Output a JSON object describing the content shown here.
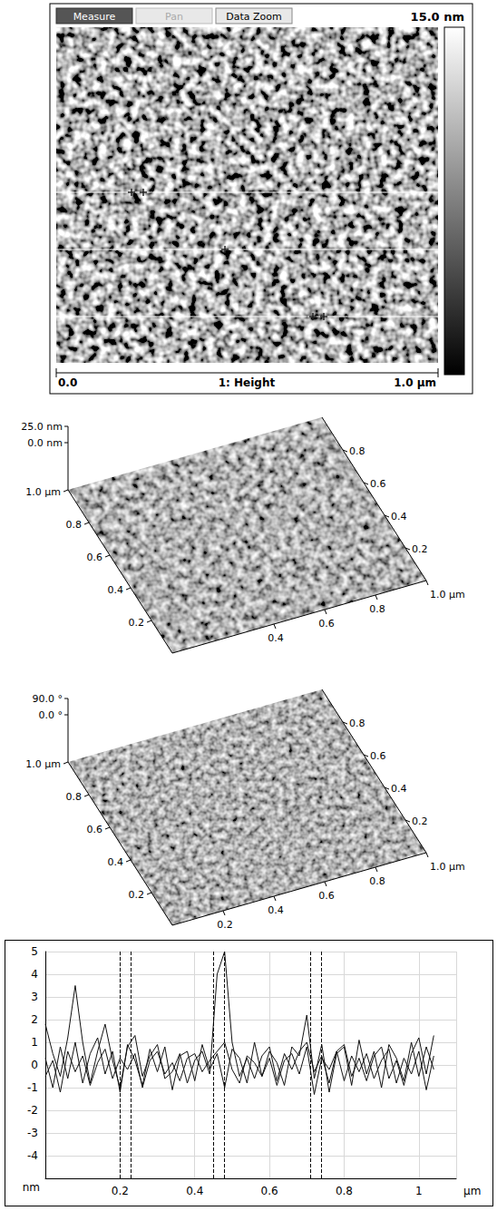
{
  "height_image": {
    "buttons": [
      "Measure",
      "Pan",
      "Data Zoom"
    ],
    "scale_max_label": "15.0 nm",
    "x_start_label": "0.0",
    "channel": "1: Height",
    "x_end_label": "1.0 µm"
  },
  "surfaces": [
    {
      "z_labels": [
        "25.0 nm",
        "0.0 nm"
      ],
      "left_ticks": [
        {
          "value": 1,
          "label": "1.0 µm"
        },
        0.8,
        0.6,
        0.4,
        0.2
      ],
      "back_ticks": [
        0.8,
        0.6,
        0.4,
        0.2
      ],
      "front_ticks": [
        0.4,
        0.6,
        0.8,
        {
          "value": 1,
          "label": "1.0 µm"
        }
      ]
    },
    {
      "z_labels": [
        "90.0 °",
        "0.0 °"
      ],
      "left_ticks": [
        {
          "value": 1,
          "label": "1.0 µm"
        },
        0.8,
        0.6,
        0.4,
        0.2
      ],
      "back_ticks": [
        0.8,
        0.6,
        0.4,
        0.2
      ],
      "front_ticks": [
        0.2,
        0.4,
        0.6,
        0.8,
        {
          "value": 1,
          "label": "1.0 µm"
        }
      ]
    }
  ],
  "chart_data": {
    "type": "line",
    "x": [
      0,
      0.02,
      0.04,
      0.06,
      0.08,
      0.1,
      0.12,
      0.14,
      0.16,
      0.18,
      0.2,
      0.22,
      0.24,
      0.26,
      0.28,
      0.3,
      0.32,
      0.34,
      0.36,
      0.38,
      0.4,
      0.42,
      0.44,
      0.46,
      0.48,
      0.5,
      0.52,
      0.54,
      0.56,
      0.58,
      0.6,
      0.62,
      0.64,
      0.66,
      0.68,
      0.7,
      0.72,
      0.74,
      0.76,
      0.78,
      0.8,
      0.82,
      0.84,
      0.86,
      0.88,
      0.9,
      0.92,
      0.94,
      0.96,
      0.98,
      1,
      1.02,
      1.04
    ],
    "series": [
      {
        "color": "#111111",
        "values": [
          1.8,
          0.5,
          -0.5,
          1.2,
          3.5,
          1.0,
          -0.8,
          0.6,
          1.8,
          0.2,
          -1.0,
          0.8,
          1.3,
          -0.5,
          0.4,
          0.9,
          -0.6,
          -0.3,
          0.5,
          -0.8,
          0.2,
          0.6,
          -0.4,
          4.0,
          5.0,
          1.0,
          -0.5,
          0.3,
          -0.6,
          0.4,
          0.8,
          -0.7,
          0.5,
          -0.2,
          0.6,
          1.0,
          -0.3,
          0.4,
          -0.8,
          0.6,
          0.9,
          -0.5,
          0.3,
          -0.7,
          0.4,
          0.8,
          -0.6,
          0.2,
          -0.9,
          0.5,
          1.2,
          -0.4,
          1.3
        ]
      },
      {
        "color": "#111111",
        "values": [
          0.3,
          -1.0,
          0.8,
          -0.6,
          1.0,
          -0.8,
          0.5,
          1.2,
          -0.4,
          0.6,
          -1.2,
          0.9,
          0.2,
          -0.9,
          0.7,
          -0.3,
          0.8,
          -1.1,
          0.4,
          0.6,
          -0.7,
          0.9,
          -0.2,
          0.5,
          -1.0,
          0.7,
          0.3,
          -0.8,
          1.0,
          -0.5,
          0.6,
          0.1,
          -0.9,
          0.8,
          0.4,
          2.2,
          -0.6,
          0.9,
          -1.2,
          0.5,
          0.8,
          -0.9,
          1.1,
          -0.4,
          0.6,
          -1.0,
          0.9,
          0.3,
          -0.7,
          1.0,
          -0.5,
          0.8,
          -0.2
        ]
      },
      {
        "color": "#111111",
        "values": [
          -0.5,
          0.2,
          -1.2,
          0.6,
          -0.3,
          0.4,
          -0.9,
          0.1,
          0.7,
          -0.6,
          0.3,
          -0.2,
          0.5,
          -1.0,
          0.2,
          0.6,
          -0.4,
          0.1,
          -0.7,
          0.3,
          0.5,
          -0.3,
          0.2,
          0.6,
          1.0,
          -0.2,
          -0.8,
          0.4,
          0.1,
          -0.5,
          0.3,
          -0.9,
          0.2,
          0.5,
          -0.4,
          0.8,
          -1.3,
          0.3,
          -0.2,
          0.6,
          -0.7,
          0.4,
          -0.3,
          0.5,
          -0.6,
          0.2,
          0.7,
          -0.8,
          0.3,
          -0.4,
          0.6,
          -1.1,
          0.4
        ]
      }
    ],
    "xlim": [
      0,
      1.1
    ],
    "xticks": [
      0.2,
      0.4,
      0.6,
      0.8,
      1
    ],
    "ylim": [
      -5,
      5
    ],
    "yticks": [
      -4,
      -3,
      -2,
      -1,
      0,
      1,
      2,
      3,
      4,
      5
    ],
    "x_label": "µm",
    "y_label": "nm",
    "cursor_lines": [
      0.2,
      0.23,
      0.445,
      0.48,
      0.715,
      0.745
    ],
    "grid": true
  }
}
